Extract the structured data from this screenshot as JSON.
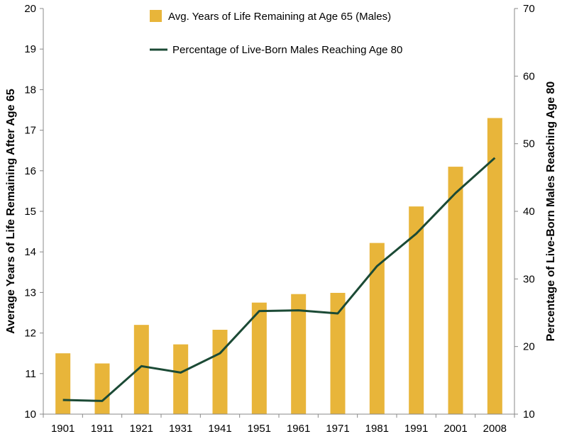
{
  "chart_data": {
    "type": "bar",
    "categories": [
      "1901",
      "1911",
      "1921",
      "1931",
      "1941",
      "1951",
      "1961",
      "1971",
      "1981",
      "1991",
      "2001",
      "2008"
    ],
    "series": [
      {
        "name": "Avg. Years of Life Remaining at Age 65 (Males)",
        "type": "bar",
        "axis": "left",
        "color": "#E8B53A",
        "values": [
          11.5,
          11.25,
          12.2,
          11.72,
          12.08,
          12.75,
          12.96,
          12.99,
          14.22,
          15.12,
          16.1,
          17.3
        ]
      },
      {
        "name": "Percentage of Live-Born Males Reaching Age 80",
        "type": "line",
        "axis": "right",
        "color": "#1B4A35",
        "values": [
          12.1,
          11.95,
          17.1,
          16.15,
          19.0,
          25.25,
          25.35,
          24.9,
          31.9,
          36.7,
          42.7,
          47.9
        ]
      }
    ],
    "y_left": {
      "label": "Average Years of Life Remaining After Age 65",
      "range": [
        10,
        20
      ],
      "ticks": [
        "10",
        "11",
        "12",
        "13",
        "14",
        "15",
        "16",
        "17",
        "18",
        "19",
        "20"
      ]
    },
    "y_right": {
      "label": "Percentage of Live-Born Males Reaching Age 80",
      "range": [
        10,
        70
      ],
      "ticks": [
        "10",
        "20",
        "30",
        "40",
        "50",
        "60",
        "70"
      ]
    },
    "grid": false,
    "legend_position": "top-center"
  }
}
